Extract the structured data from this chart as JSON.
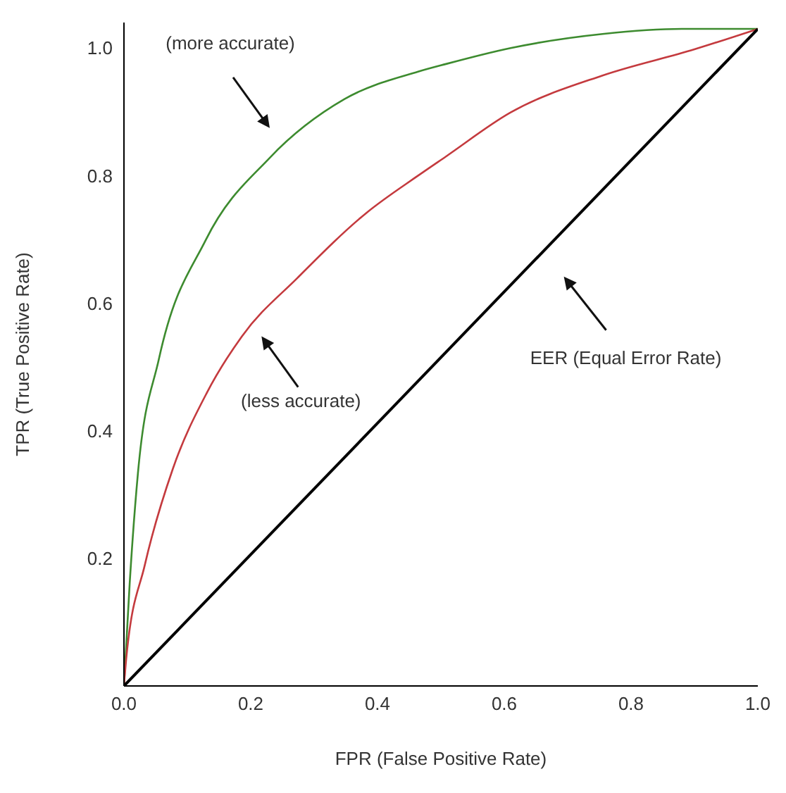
{
  "chart_data": {
    "type": "line",
    "xlabel": "FPR (False Positive Rate)",
    "ylabel": "TPR (True Positive Rate)",
    "xlim": [
      0,
      1
    ],
    "ylim": [
      0,
      1.04
    ],
    "xticks": [
      {
        "value": 0,
        "label": "0.0"
      },
      0.2,
      0.4,
      0.6,
      0.8,
      {
        "value": 1,
        "label": "1.0"
      }
    ],
    "yticks": [
      0.2,
      0.4,
      0.6,
      0.8,
      {
        "value": 1,
        "label": "1.0"
      }
    ],
    "grid": false,
    "marker": "none",
    "line_style": "solid",
    "series": [
      {
        "color": "#3d8b2f",
        "x": [
          0,
          0.009,
          0.022,
          0.055,
          0.129,
          0.23,
          0.348,
          0.464,
          0.508,
          0.61,
          0.755,
          0.88,
          1
        ],
        "values": [
          0,
          0.16,
          0.333,
          0.512,
          0.699,
          0.828,
          0.92,
          0.963,
          0.975,
          1.0,
          1.022,
          1.03,
          1.03
        ]
      },
      {
        "color": "#c43a3e",
        "x": [
          0,
          0.004,
          0.033,
          0.077,
          0.131,
          0.186,
          0.274,
          0.383,
          0.464,
          0.508,
          0.61,
          0.755,
          0.9,
          1
        ],
        "values": [
          0,
          0.047,
          0.19,
          0.34,
          0.46,
          0.548,
          0.64,
          0.742,
          0.8,
          0.83,
          0.899,
          0.957,
          0.998,
          1.03
        ]
      },
      {
        "color": "#000000",
        "x": [
          0,
          1
        ],
        "values": [
          0,
          1.03
        ]
      }
    ],
    "annotations": [
      "(more accurate)",
      "(less accurate)",
      "EER (Equal Error Rate)"
    ]
  }
}
